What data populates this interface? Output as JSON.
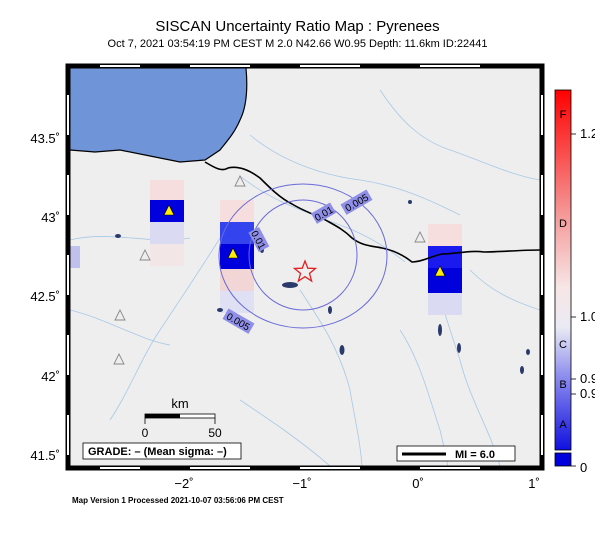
{
  "title": "SISCAN Uncertainty Ratio Map : Pyrenees",
  "subtitle": "Oct  7, 2021 03:54:19 PM CEST   M 2.0   N42.66 W0.95   Depth: 11.6km   ID:22441",
  "footer": "Map Version 1 Processed 2021-10-07 03:56:06 PM CEST",
  "axes": {
    "y_ticks": [
      {
        "label": "43.5˚",
        "value": 43.5
      },
      {
        "label": "43˚",
        "value": 43.0
      },
      {
        "label": "42.5˚",
        "value": 42.5
      },
      {
        "label": "42˚",
        "value": 42.0
      },
      {
        "label": "41.5˚",
        "value": 41.5
      }
    ],
    "x_ticks": [
      {
        "label": "−2˚",
        "value": -2
      },
      {
        "label": "−1˚",
        "value": -1
      },
      {
        "label": "0˚",
        "value": 0
      },
      {
        "label": "1˚",
        "value": 1
      }
    ]
  },
  "contour_labels": [
    "0.005",
    "0.01",
    "0.01",
    "0.005"
  ],
  "scale_bar": {
    "title": "km",
    "start": "0",
    "end": "50"
  },
  "grade_box": "GRADE: – (Mean sigma: –)",
  "mi_legend": "MI = 6.0",
  "colorbar": {
    "grade_labels": [
      "F",
      "D",
      "C",
      "B",
      "A"
    ],
    "value_labels": [
      "1.2",
      "1.0",
      "0.9",
      "0.9",
      "0"
    ]
  },
  "colors": {
    "sea": "#6f94d8",
    "land": "#eeeeee",
    "station_fill": "#ffee00",
    "epicenter": "#e02020",
    "contour": "#6a6ad8",
    "cell_high_blue": "#0000dd",
    "cell_mid_blue": "#3344ee"
  }
}
